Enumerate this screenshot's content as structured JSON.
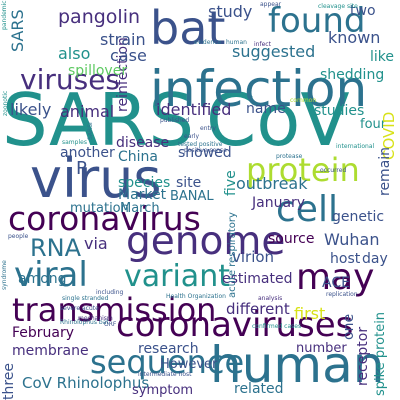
{
  "words": [
    {
      "text": "SARS"
    },
    {
      "text": "CoV"
    },
    {
      "text": "infection"
    },
    {
      "text": "virus"
    },
    {
      "text": "bat"
    },
    {
      "text": "coronavirus"
    },
    {
      "text": "human"
    },
    {
      "text": "coronaviruses"
    },
    {
      "text": "genome"
    },
    {
      "text": "transmission"
    },
    {
      "text": "cell"
    },
    {
      "text": "found"
    },
    {
      "text": "protein"
    },
    {
      "text": "viruses"
    },
    {
      "text": "variant"
    },
    {
      "text": "viral"
    },
    {
      "text": "sequence"
    },
    {
      "text": "may"
    },
    {
      "text": "RNA"
    },
    {
      "text": "pangolin"
    },
    {
      "text": "reinfection"
    },
    {
      "text": "study"
    },
    {
      "text": "strain"
    },
    {
      "text": "case"
    },
    {
      "text": "also"
    },
    {
      "text": "SARS"
    },
    {
      "text": "spillover"
    },
    {
      "text": "likely"
    },
    {
      "text": "animal"
    },
    {
      "text": "identified"
    },
    {
      "text": "suggested"
    },
    {
      "text": "known"
    },
    {
      "text": "shedding"
    },
    {
      "text": "like"
    },
    {
      "text": "two"
    },
    {
      "text": "name"
    },
    {
      "text": "studies"
    },
    {
      "text": "disease"
    },
    {
      "text": "showed"
    },
    {
      "text": "China"
    },
    {
      "text": "species"
    },
    {
      "text": "site"
    },
    {
      "text": "outbreak"
    },
    {
      "text": "four"
    },
    {
      "text": "COVID"
    },
    {
      "text": "another"
    },
    {
      "text": "BANAL"
    },
    {
      "text": "five"
    },
    {
      "text": "remain"
    },
    {
      "text": "R"
    },
    {
      "text": "Market"
    },
    {
      "text": "January"
    },
    {
      "text": "genetic"
    },
    {
      "text": "mutation"
    },
    {
      "text": "March"
    },
    {
      "text": "via"
    },
    {
      "text": "Wuhan"
    },
    {
      "text": "virion"
    },
    {
      "text": "source"
    },
    {
      "text": "host"
    },
    {
      "text": "day"
    },
    {
      "text": "among"
    },
    {
      "text": "estimated"
    },
    {
      "text": "ACE"
    },
    {
      "text": "first"
    },
    {
      "text": "February"
    },
    {
      "text": "membrane"
    },
    {
      "text": "different"
    },
    {
      "text": "research"
    },
    {
      "text": "number"
    },
    {
      "text": "However"
    },
    {
      "text": "one"
    },
    {
      "text": "three"
    },
    {
      "text": "receptor"
    },
    {
      "text": "CoV Rhinolophus"
    },
    {
      "text": "related"
    },
    {
      "text": "symptom"
    },
    {
      "text": "spike protein"
    },
    {
      "text": "acute respiratory"
    },
    {
      "text": "entry"
    },
    {
      "text": "Health Organization"
    },
    {
      "text": "cleavage site"
    },
    {
      "text": "appear"
    },
    {
      "text": "human"
    },
    {
      "text": "infect"
    },
    {
      "text": "early"
    },
    {
      "text": "international"
    },
    {
      "text": "common"
    },
    {
      "text": "replication"
    },
    {
      "text": "protease"
    },
    {
      "text": "occurred"
    },
    {
      "text": "analysis"
    },
    {
      "text": "intermediate host"
    },
    {
      "text": "single stranded"
    },
    {
      "text": "zoonotic"
    },
    {
      "text": "tested positive"
    },
    {
      "text": "severe acute"
    },
    {
      "text": "including"
    },
    {
      "text": "evidence"
    },
    {
      "text": "mechanism"
    },
    {
      "text": "pandemic"
    },
    {
      "text": "Rhinolophus bat"
    },
    {
      "text": "positive sense"
    },
    {
      "text": "confirmed cases"
    },
    {
      "text": "published"
    },
    {
      "text": "people"
    },
    {
      "text": "samples"
    },
    {
      "text": "ORF"
    },
    {
      "text": "syndrome"
    },
    {
      "text": "SARSr"
    }
  ]
}
